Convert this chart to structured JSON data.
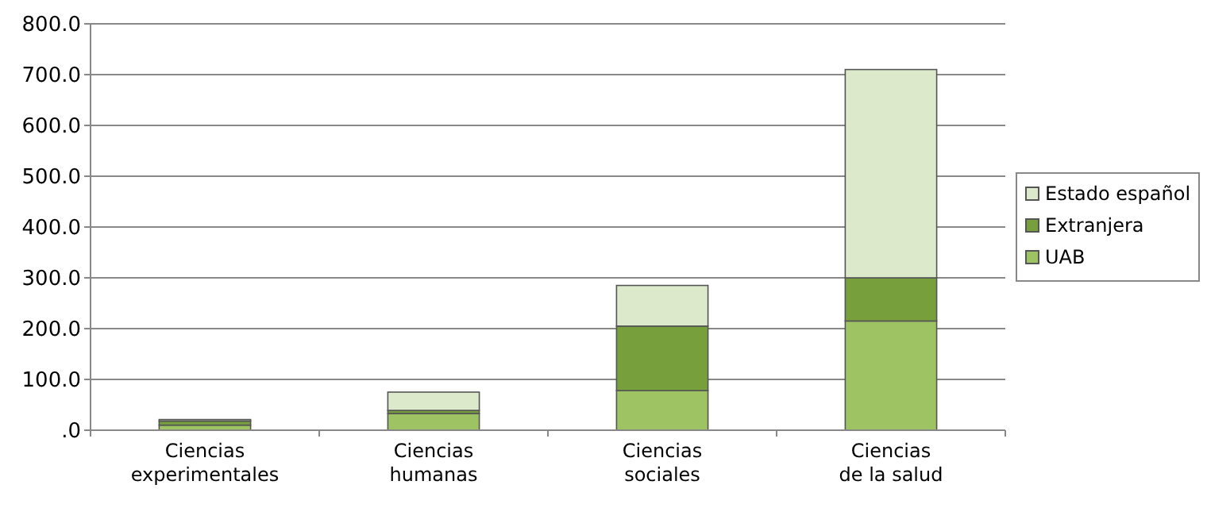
{
  "chart_data": {
    "type": "bar",
    "stacked": true,
    "categories": [
      "Ciencias experimentales",
      "Ciencias humanas",
      "Ciencias sociales",
      "Ciencias de la salud"
    ],
    "series": [
      {
        "name": "UAB",
        "color": "#9dc363",
        "values": [
          10,
          33,
          78,
          215
        ]
      },
      {
        "name": "Extranjera",
        "color": "#77a03d",
        "values": [
          8,
          6,
          127,
          85
        ]
      },
      {
        "name": "Estado español",
        "color": "#dde9cb",
        "values": [
          3,
          36,
          80,
          410
        ]
      }
    ],
    "ylim": [
      0,
      800
    ],
    "yticks": [
      {
        "value": 0,
        "label": ".0"
      },
      {
        "value": 100,
        "label": "100.0"
      },
      {
        "value": 200,
        "label": "200.0"
      },
      {
        "value": 300,
        "label": "300.0"
      },
      {
        "value": 400,
        "label": "400.0"
      },
      {
        "value": 500,
        "label": "500.0"
      },
      {
        "value": 600,
        "label": "600.0"
      },
      {
        "value": 700,
        "label": "700.0"
      },
      {
        "value": 800,
        "label": "800.0"
      }
    ],
    "grid": "y",
    "legend": "right"
  }
}
